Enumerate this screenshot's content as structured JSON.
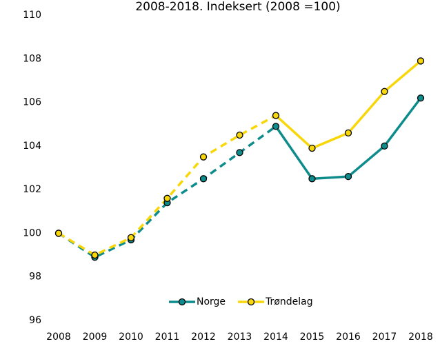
{
  "chart_data": {
    "type": "line",
    "title": "2008-2018. Indeksert (2008 =100)",
    "categories": [
      "2008",
      "2009",
      "2010",
      "2011",
      "2012",
      "2013",
      "2014",
      "2015",
      "2016",
      "2017",
      "2018"
    ],
    "series": [
      {
        "name": "Norge",
        "color": "#0e8c8c",
        "values": [
          100,
          98.9,
          99.7,
          101.4,
          102.5,
          103.7,
          104.9,
          102.5,
          102.6,
          104.0,
          106.2
        ]
      },
      {
        "name": "Trøndelag",
        "color": "#f7d70a",
        "values": [
          100,
          99.0,
          99.8,
          101.6,
          103.5,
          104.5,
          105.4,
          103.9,
          104.6,
          106.5,
          107.9
        ]
      }
    ],
    "dashed_through": "2014",
    "ylim": [
      96,
      110
    ],
    "yticks": [
      96,
      98,
      100,
      102,
      104,
      106,
      108,
      110
    ],
    "grid": false,
    "legend": "bottom"
  }
}
